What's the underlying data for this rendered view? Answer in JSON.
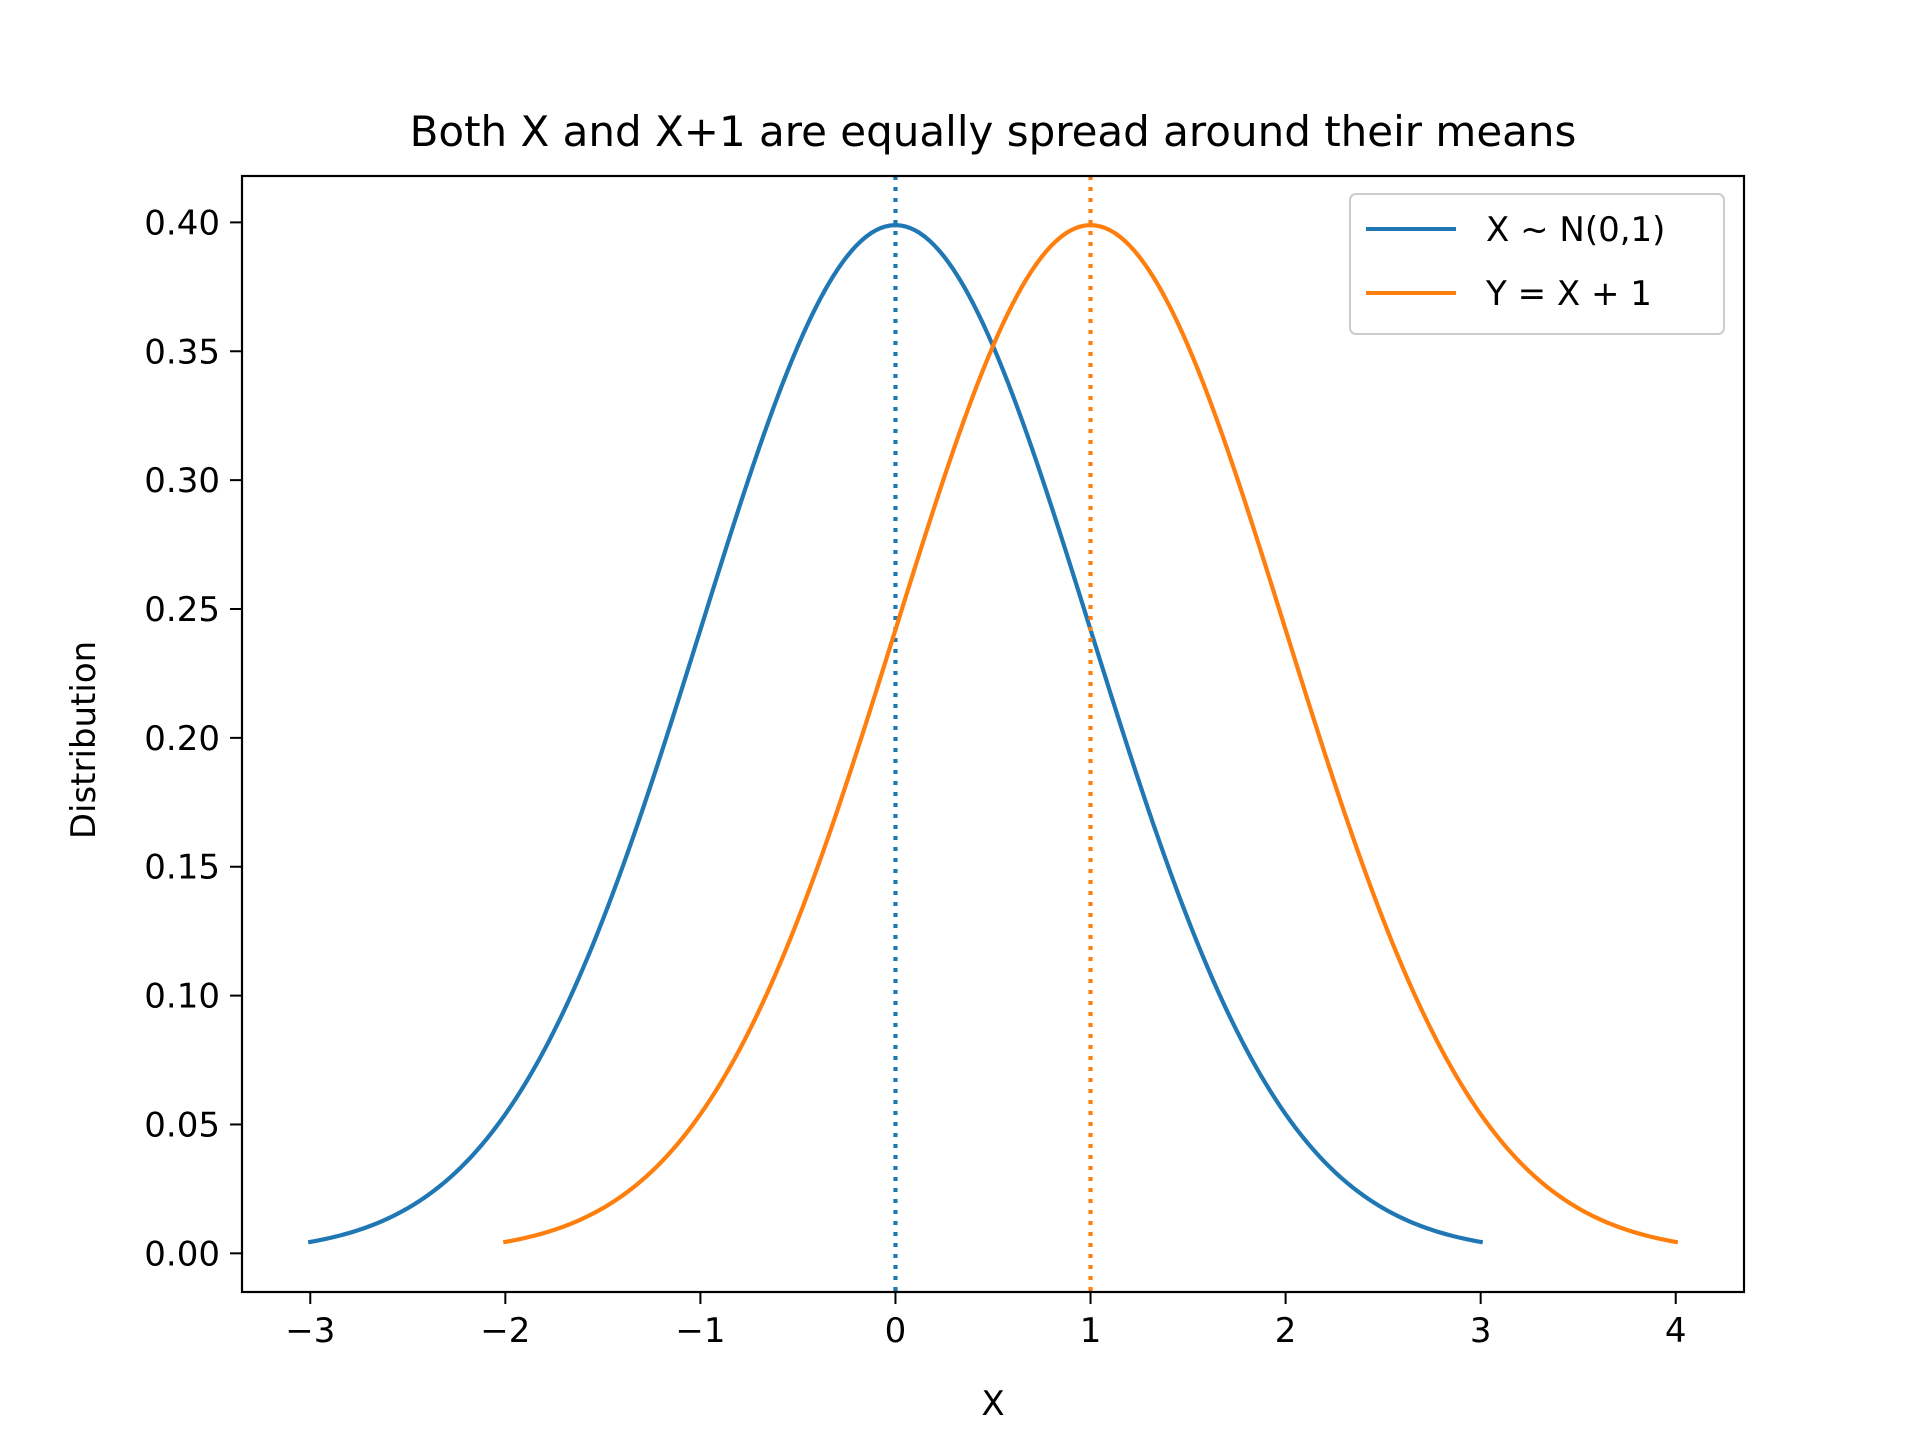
{
  "chart_data": {
    "type": "line",
    "title": "Both X and X+1 are equally spread around their means",
    "xlabel": "X",
    "ylabel": "Distribution",
    "xlim": [
      -3.35,
      4.35
    ],
    "ylim": [
      -0.015,
      0.418
    ],
    "xticks": [
      -3,
      -2,
      -1,
      0,
      1,
      2,
      3,
      4
    ],
    "xtick_labels": [
      "−3",
      "−2",
      "−1",
      "0",
      "1",
      "2",
      "3",
      "4"
    ],
    "yticks": [
      0.0,
      0.05,
      0.1,
      0.15,
      0.2,
      0.25,
      0.3,
      0.35,
      0.4
    ],
    "ytick_labels": [
      "0.00",
      "0.05",
      "0.10",
      "0.15",
      "0.20",
      "0.25",
      "0.30",
      "0.35",
      "0.40"
    ],
    "grid": false,
    "legend_position": "top-right",
    "series": [
      {
        "name": "X ~ N(0,1)",
        "color": "#1f77b4",
        "x": [
          -3.0,
          -2.5,
          -2.0,
          -1.5,
          -1.0,
          -0.5,
          0.0,
          0.5,
          1.0,
          1.5,
          2.0,
          2.5,
          3.0
        ],
        "y": [
          0.0044,
          0.0175,
          0.054,
          0.1295,
          0.242,
          0.3521,
          0.3989,
          0.3521,
          0.242,
          0.1295,
          0.054,
          0.0175,
          0.0044
        ],
        "mean": 0
      },
      {
        "name": "Y = X + 1",
        "color": "#ff7f0e",
        "x": [
          -2.0,
          -1.5,
          -1.0,
          -0.5,
          0.0,
          0.5,
          1.0,
          1.5,
          2.0,
          2.5,
          3.0,
          3.5,
          4.0
        ],
        "y": [
          0.0044,
          0.0175,
          0.054,
          0.1295,
          0.242,
          0.3521,
          0.3989,
          0.3521,
          0.242,
          0.1295,
          0.054,
          0.0175,
          0.0044
        ],
        "mean": 1
      }
    ]
  }
}
